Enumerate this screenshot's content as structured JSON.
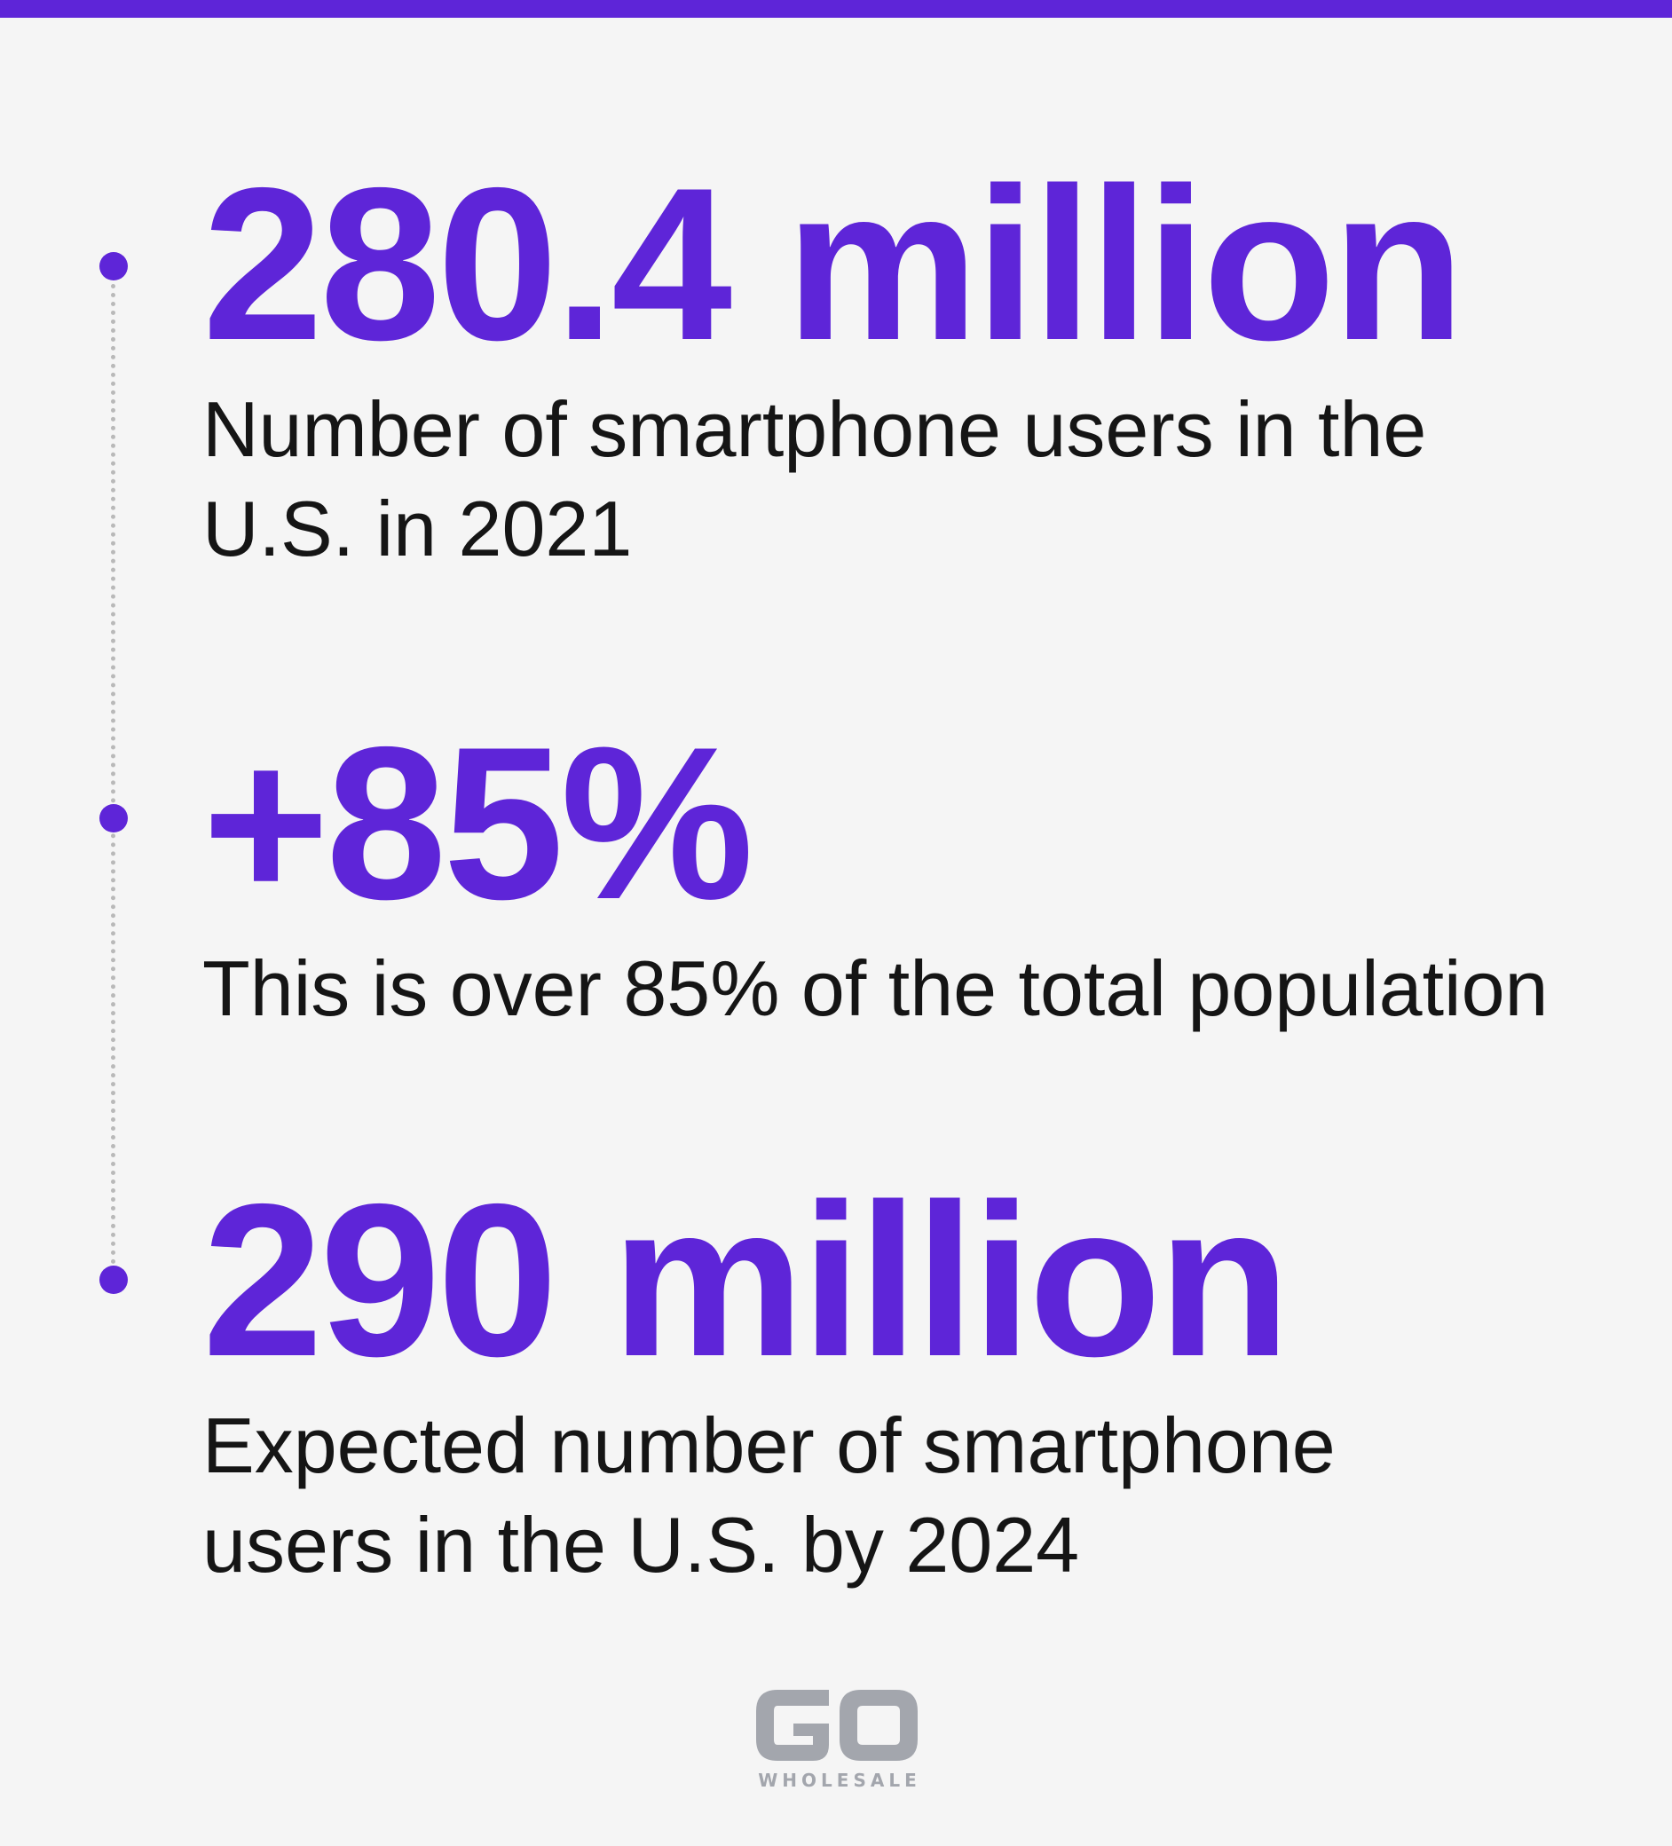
{
  "stats": [
    {
      "value": "280.4 million",
      "description": "Number of smartphone users in the U.S. in 2021"
    },
    {
      "value": "+85%",
      "description": "This is over 85% of the total population"
    },
    {
      "value": "290 million",
      "description": "Expected number of smartphone users in the U.S. by 2024"
    }
  ],
  "logo": {
    "mark": "GO",
    "tagline": "WHOLESALE"
  },
  "colors": {
    "accent": "#5e25d8",
    "text": "#151515",
    "background": "#f5f5f5",
    "timeline": "#b9b9b9",
    "logo": "#a3a6ad"
  }
}
